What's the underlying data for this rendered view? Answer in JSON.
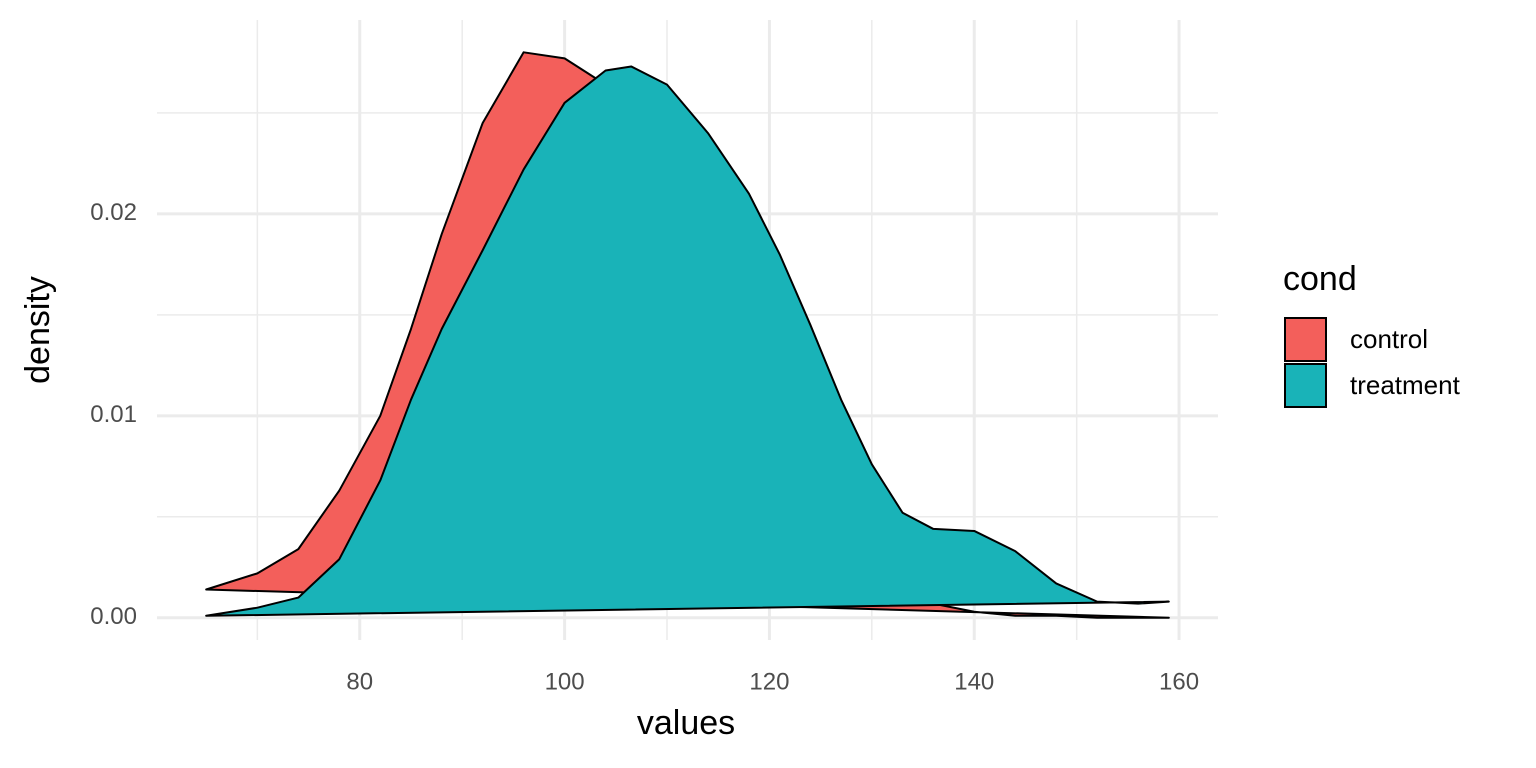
{
  "chart_data": {
    "type": "density",
    "x_label": "values",
    "y_label": "density",
    "legend_title": "cond",
    "legend_position": "right",
    "grid": true,
    "xlim": [
      60.2,
      163.8
    ],
    "ylim": [
      -0.0011,
      0.0296
    ],
    "xticks": [
      80,
      100,
      120,
      140,
      160
    ],
    "xminor": [
      70,
      90,
      110,
      130,
      150
    ],
    "yticks": [
      {
        "value": 0,
        "label": "0.00"
      },
      {
        "value": 0.01,
        "label": "0.01"
      },
      {
        "value": 0.02,
        "label": "0.02"
      }
    ],
    "yminor": [
      0.005,
      0.015,
      0.025
    ],
    "x": [
      65,
      70,
      74,
      78,
      82,
      85,
      88,
      92,
      96,
      100,
      104,
      106.5,
      110,
      114,
      118,
      121,
      124,
      127,
      130,
      133,
      136,
      140,
      144,
      148,
      152,
      156,
      159
    ],
    "series": [
      {
        "name": "control",
        "color": "#f35f5b",
        "values": [
          0.0014,
          0.0022,
          0.0034,
          0.0063,
          0.01,
          0.0143,
          0.019,
          0.0245,
          0.028,
          0.0277,
          0.0264,
          0.0252,
          0.0226,
          0.0185,
          0.014,
          0.01,
          0.0068,
          0.0042,
          0.0024,
          0.0013,
          0.0007,
          0.0003,
          0.0001,
          0.0001,
          0,
          0,
          0
        ]
      },
      {
        "name": "treatment",
        "color": "#19b3b8",
        "values": [
          0.0001,
          0.0005,
          0.001,
          0.0029,
          0.0068,
          0.0108,
          0.0143,
          0.0182,
          0.0222,
          0.0255,
          0.0271,
          0.0273,
          0.0264,
          0.024,
          0.021,
          0.018,
          0.0145,
          0.0108,
          0.0076,
          0.0052,
          0.0044,
          0.0043,
          0.0033,
          0.0017,
          0.0008,
          0.0007,
          0.0008
        ]
      }
    ]
  }
}
